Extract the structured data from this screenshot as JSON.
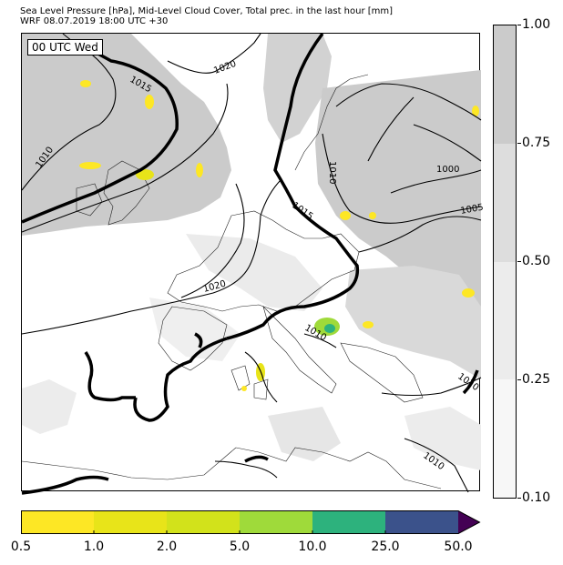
{
  "header": {
    "line1": "Sea Level Pressure [hPa], Mid-Level Cloud Cover, Total prec. in the last hour [mm]",
    "line2": "WRF 08.07.2019 18:00 UTC +30"
  },
  "map": {
    "time_label": "00 UTC Wed",
    "isobar_labels": [
      "1020",
      "1015",
      "1010",
      "1000",
      "1005",
      "1015",
      "1020",
      "1010",
      "1010",
      "1010",
      "1010"
    ]
  },
  "cloud_cover_legend": {
    "labels": [
      "1.00",
      "0.75",
      "0.50",
      "0.25",
      "0.10"
    ],
    "colors": [
      "#cbcbcb",
      "#dddddd",
      "#ececec",
      "#f7f7f7"
    ]
  },
  "precip_legend": {
    "labels": [
      "0.5",
      "1.0",
      "2.0",
      "5.0",
      "10.0",
      "25.0",
      "50.0"
    ],
    "colors": [
      "#fde725",
      "#e8e419",
      "#d2e21b",
      "#9fda3a",
      "#2db27d",
      "#3b528b",
      "#440154"
    ]
  }
}
